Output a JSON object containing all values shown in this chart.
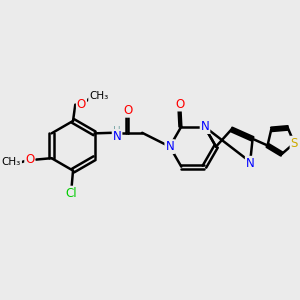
{
  "bg_color": "#ebebeb",
  "bond_color": "#000000",
  "bond_width": 1.8,
  "atom_colors": {
    "O": "#ff0000",
    "N": "#0000ff",
    "S": "#ccaa00",
    "Cl": "#00cc00",
    "H": "#7faaaa",
    "C": "#000000"
  },
  "font_size": 8.5,
  "fig_size": [
    3.0,
    3.0
  ],
  "dpi": 100,
  "xlim": [
    0,
    10
  ],
  "ylim": [
    0,
    10
  ]
}
